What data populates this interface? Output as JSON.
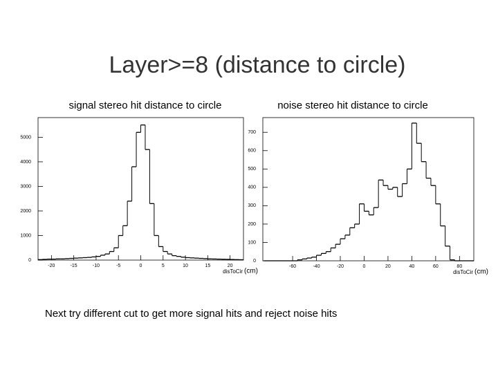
{
  "slide": {
    "title": "Layer>=8 (distance to circle)",
    "caption": "Next try different cut to get  more signal hits and reject noise hits"
  },
  "chart_data": [
    {
      "type": "histogram",
      "title": "signal stereo hit distance to circle",
      "xlabel": "disToCir",
      "xunit": "(cm)",
      "color": "#000000",
      "bins": [
        -23,
        -22,
        -21,
        -20,
        -19,
        -18,
        -17,
        -16,
        -15,
        -14,
        -13,
        -12,
        -11,
        -10,
        -9,
        -8,
        -7,
        -6,
        -5,
        -4,
        -3,
        -2,
        -1,
        0,
        1,
        2,
        3,
        4,
        5,
        6,
        7,
        8,
        9,
        10,
        11,
        12,
        13,
        14,
        15,
        16,
        17,
        18,
        19,
        20,
        21,
        22,
        23
      ],
      "values": [
        20,
        30,
        40,
        40,
        50,
        50,
        60,
        70,
        80,
        90,
        100,
        110,
        130,
        150,
        200,
        250,
        350,
        500,
        1000,
        1400,
        2400,
        3800,
        5200,
        5500,
        4500,
        2300,
        1000,
        550,
        350,
        250,
        180,
        150,
        120,
        100,
        90,
        80,
        70,
        60,
        50,
        45,
        40,
        35,
        30,
        25,
        20,
        15
      ],
      "xlim": [
        -23,
        23
      ],
      "xticks": [
        -20,
        -15,
        -10,
        -5,
        0,
        5,
        10,
        15,
        20
      ],
      "ylim": [
        0,
        5800
      ],
      "yticks": [
        0,
        1000,
        2000,
        3000,
        4000,
        5000
      ]
    },
    {
      "type": "histogram",
      "title": "noise stereo hit distance to circle",
      "xlabel": "disToCir",
      "xunit": "(cm)",
      "color": "#000000",
      "bins": [
        -84,
        -80,
        -76,
        -72,
        -68,
        -64,
        -60,
        -56,
        -52,
        -48,
        -44,
        -40,
        -36,
        -32,
        -28,
        -24,
        -20,
        -16,
        -12,
        -8,
        -4,
        0,
        4,
        8,
        12,
        16,
        20,
        24,
        28,
        32,
        36,
        40,
        44,
        48,
        52,
        56,
        60,
        64,
        68,
        72,
        76,
        80,
        84,
        88,
        92
      ],
      "values": [
        0,
        0,
        0,
        0,
        0,
        0,
        0,
        5,
        10,
        15,
        20,
        30,
        40,
        50,
        70,
        90,
        120,
        140,
        180,
        200,
        310,
        270,
        250,
        290,
        440,
        410,
        390,
        400,
        350,
        420,
        500,
        750,
        640,
        540,
        450,
        410,
        310,
        190,
        80,
        5,
        0,
        0,
        0,
        0
      ],
      "xlim": [
        -85,
        92
      ],
      "xticks": [
        -60,
        -40,
        -20,
        0,
        20,
        40,
        60,
        80
      ],
      "ylim": [
        0,
        780
      ],
      "yticks": [
        0,
        100,
        200,
        300,
        400,
        500,
        600,
        700
      ]
    }
  ]
}
